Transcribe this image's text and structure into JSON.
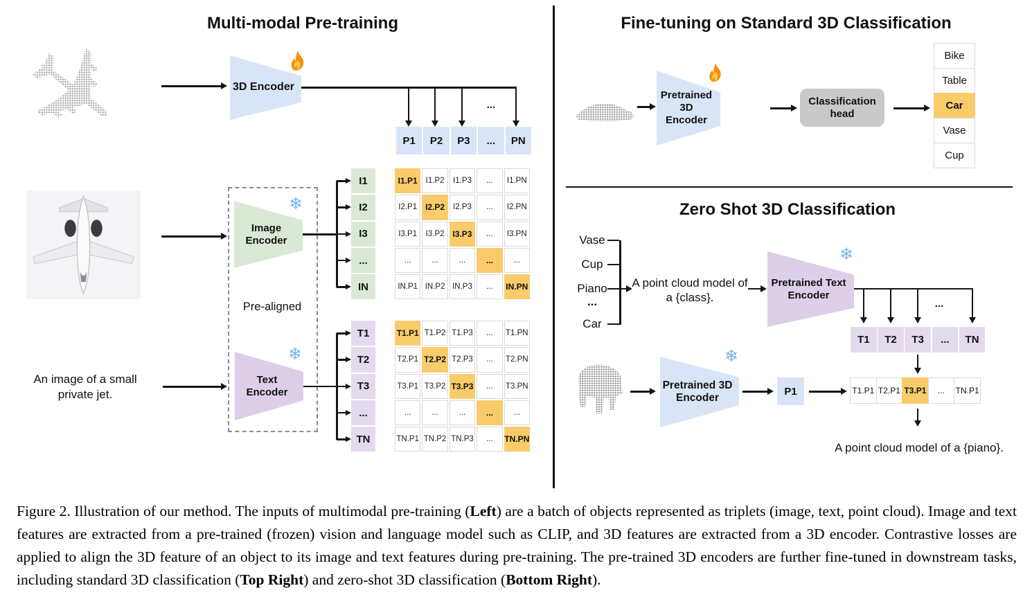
{
  "misc": {
    "ellipsis": "..."
  },
  "colors": {
    "blue": "#D9E4F7",
    "green": "#DAE9D5",
    "purple_cell": "#E4DAEE",
    "purple_shape": "#DCCFE7",
    "orange": "#F9CB6B",
    "head_gray": "#C9C9C9",
    "line": "#141414",
    "cell_border": "#D9D9D9"
  },
  "icons": {
    "trainable": "fire-icon",
    "frozen": "snowflake-icon"
  },
  "pretraining": {
    "title": "Multi-modal Pre-training",
    "encoder3d_label": "3D Encoder",
    "image_encoder_label": "Image\nEncoder",
    "text_encoder_label": "Text\nEncoder",
    "prealigned_label": "Pre-aligned",
    "jet_caption": "An image of a small\nprivate jet.",
    "p_row": [
      "P1",
      "P2",
      "P3",
      "...",
      "PN"
    ],
    "image_labels": [
      "I1",
      "I2",
      "I3",
      "...",
      "IN"
    ],
    "image_matrix": [
      [
        "I1.P1",
        "I1.P2",
        "I1.P3",
        "...",
        "I1.PN"
      ],
      [
        "I2.P1",
        "I2.P2",
        "I2.P3",
        "...",
        "I2.PN"
      ],
      [
        "I3.P1",
        "I3.P2",
        "I3.P3",
        "...",
        "I3.PN"
      ],
      [
        "...",
        "...",
        "...",
        "...",
        "..."
      ],
      [
        "IN.P1",
        "IN.P2",
        "IN.P3",
        "...",
        "IN.PN"
      ]
    ],
    "text_labels": [
      "T1",
      "T2",
      "T3",
      "...",
      "TN"
    ],
    "text_matrix": [
      [
        "T1.P1",
        "T1.P2",
        "T1.P3",
        "...",
        "T1.PN"
      ],
      [
        "T2.P1",
        "T2.P2",
        "T2.P3",
        "...",
        "T2.PN"
      ],
      [
        "T3.P1",
        "T3.P2",
        "T3.P3",
        "...",
        "T3.PN"
      ],
      [
        "...",
        "...",
        "...",
        "...",
        "..."
      ],
      [
        "TN.P1",
        "TN.P2",
        "TN.P3",
        "...",
        "TN.PN"
      ]
    ]
  },
  "finetune": {
    "title": "Fine-tuning on Standard 3D Classification",
    "encoder_label": "Pretrained 3D\nEncoder",
    "head_label": "Classification\nhead",
    "classes": [
      "Bike",
      "Table",
      "Car",
      "Vase",
      "Cup"
    ],
    "highlight_index": 2
  },
  "zeroshot": {
    "title": "Zero Shot 3D Classification",
    "class_list": [
      "Vase",
      "Cup",
      "Piano",
      "...",
      "Car"
    ],
    "prompt": "A point cloud model of\na {class}.",
    "text_encoder_label": "Pretrained Text\nEncoder",
    "encoder3d_label": "Pretrained 3D\nEncoder",
    "t_row": [
      "T1",
      "T2",
      "T3",
      "...",
      "TN"
    ],
    "p_cell": "P1",
    "result_row": [
      "T1.P1",
      "T2.P1",
      "T3.P1",
      "...",
      "TN.P1"
    ],
    "result_highlight_index": 2,
    "result_prompt": "A point cloud model of a {piano}."
  },
  "caption": {
    "segments": [
      {
        "text": "Figure 2. Illustration of our method. The inputs of multimodal pre-training (",
        "bold": false
      },
      {
        "text": "Left",
        "bold": true
      },
      {
        "text": ") are a batch of objects represented as triplets (image, text, point cloud). Image and text features are extracted from a pre-trained (frozen) vision and language model such as CLIP, and 3D features are extracted from a 3D encoder. Contrastive losses are applied to align the 3D feature of an object to its image and text features during pre-training. The pre-trained 3D encoders are further fine-tuned in downstream tasks, including standard 3D classification (",
        "bold": false
      },
      {
        "text": "Top Right",
        "bold": true
      },
      {
        "text": ") and zero-shot 3D classification (",
        "bold": false
      },
      {
        "text": "Bottom Right",
        "bold": true
      },
      {
        "text": ").",
        "bold": false
      }
    ]
  }
}
